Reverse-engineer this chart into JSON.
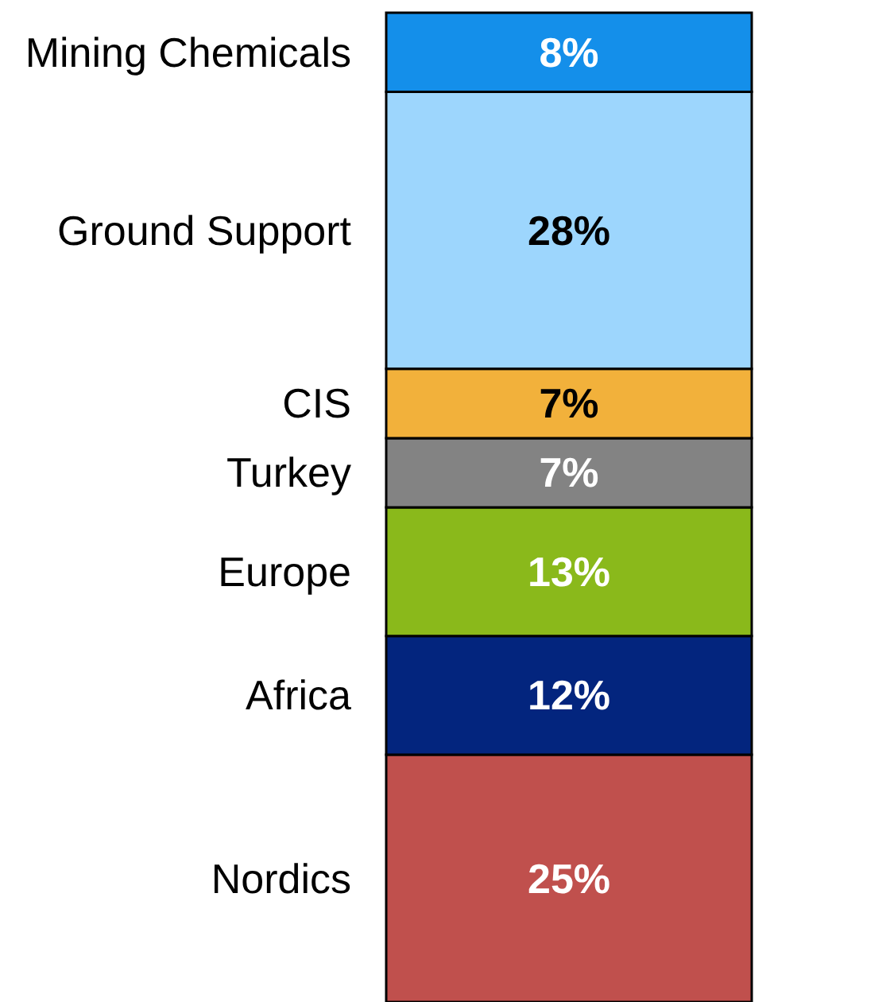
{
  "chart_data": {
    "type": "bar",
    "stacked": true,
    "tick_labels": false,
    "categories": [
      null
    ],
    "series": [
      {
        "name": "Nordics",
        "color": "#c0504d",
        "values": [
          25
        ],
        "value_labels": [
          "25%"
        ]
      },
      {
        "name": "Africa",
        "color": "#03257e",
        "values": [
          12
        ],
        "value_labels": [
          "12%"
        ]
      },
      {
        "name": "Europe",
        "color": "#8ab91b",
        "values": [
          13
        ],
        "value_labels": [
          "13%"
        ]
      },
      {
        "name": "Turkey",
        "color": "#838383",
        "values": [
          7
        ],
        "value_labels": [
          "7%"
        ]
      },
      {
        "name": "CIS",
        "color": "#f2b13b",
        "values": [
          7
        ],
        "value_labels": [
          "7%"
        ]
      },
      {
        "name": "Ground Support",
        "color": "#9dd6fd",
        "values": [
          28
        ],
        "value_labels": [
          "28%"
        ]
      },
      {
        "name": "Mining Chemicals",
        "color": "#148fea",
        "values": [
          8
        ],
        "value_labels": [
          "8%"
        ]
      }
    ]
  }
}
